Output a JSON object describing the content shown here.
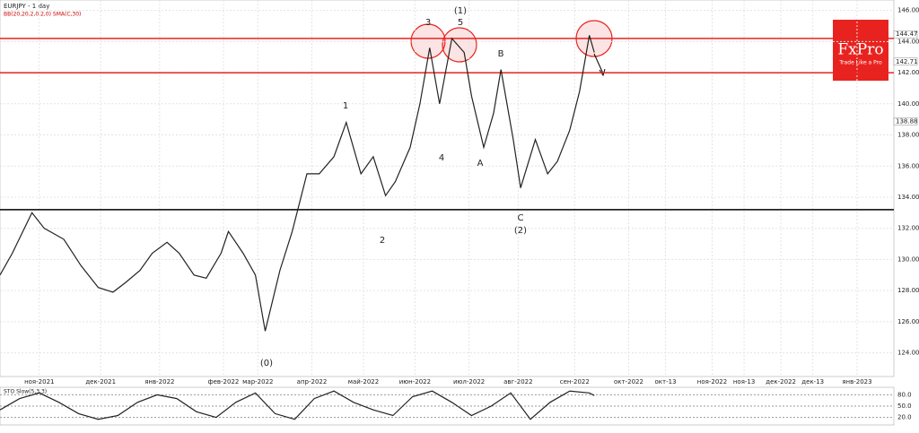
{
  "chart_data": [
    {
      "type": "line",
      "title": "EURJPY - 1 day",
      "subtitle": "BB(20,20,2,0,2,0) SMA(C,30)",
      "brand": "FxPro",
      "tagline": "Trade Like a Pro",
      "x": [
        0,
        5,
        13,
        18,
        26,
        33,
        40,
        46,
        51,
        57,
        62,
        68,
        73,
        79,
        84,
        90,
        93,
        99,
        104,
        108,
        114,
        119,
        125,
        130,
        136,
        141,
        147,
        152,
        157,
        161,
        167,
        171,
        175,
        179,
        184,
        189,
        192,
        197,
        201,
        204,
        209,
        212,
        218,
        223,
        227,
        232,
        236,
        240,
        242
      ],
      "series": [
        {
          "name": "EURJPY",
          "color": "#222222",
          "values": [
            129.0,
            130.4,
            133.0,
            132.0,
            131.3,
            129.6,
            128.2,
            127.9,
            128.5,
            129.3,
            130.4,
            131.1,
            130.4,
            129.0,
            128.8,
            130.4,
            131.8,
            130.4,
            129.0,
            125.4,
            129.3,
            131.8,
            135.5,
            135.5,
            136.6,
            138.8,
            135.5,
            136.6,
            134.1,
            135.0,
            137.2,
            140.0,
            143.6,
            140.0,
            144.2,
            143.3,
            140.5,
            137.2,
            139.4,
            142.2,
            137.7,
            134.6,
            137.7,
            135.5,
            136.3,
            138.3,
            140.8,
            144.4,
            143.3
          ]
        }
      ],
      "levels": [
        {
          "value": 144.2,
          "color": "#e8231f"
        },
        {
          "value": 142.0,
          "color": "#e8231f"
        },
        {
          "value": 133.2,
          "color": "#000000"
        }
      ],
      "price_labels": [
        144.47,
        142.71,
        138.88
      ],
      "annotations": [
        "(0)",
        "1",
        "2",
        "3",
        "4",
        "5",
        "(1)",
        "A",
        "B",
        "C",
        "(2)"
      ],
      "xlim": [
        0,
        364
      ],
      "ylim": [
        122.48,
        146.67
      ],
      "xticks": [
        {
          "value": 16,
          "label": "ноя-2021"
        },
        {
          "value": 41,
          "label": "дек-2021"
        },
        {
          "value": 65,
          "label": "янв-2022"
        },
        {
          "value": 91,
          "label": "фев-2022"
        },
        {
          "value": 105,
          "label": "мар-2022"
        },
        {
          "value": 127,
          "label": "апр-2022"
        },
        {
          "value": 148,
          "label": "май-2022"
        },
        {
          "value": 169,
          "label": "июн-2022"
        },
        {
          "value": 191,
          "label": "июл-2022"
        },
        {
          "value": 211,
          "label": "авг-2022"
        },
        {
          "value": 234,
          "label": "сен-2022"
        },
        {
          "value": 256,
          "label": "окт-2022"
        },
        {
          "value": 271,
          "label": "окт-13"
        },
        {
          "value": 290,
          "label": "ноя-2022"
        },
        {
          "value": 303,
          "label": "ноя-13"
        },
        {
          "value": 318,
          "label": "дек-2022"
        },
        {
          "value": 331,
          "label": "дек-13"
        },
        {
          "value": 349,
          "label": "янв-2023"
        }
      ],
      "yticks": [
        {
          "value": 124,
          "label": "124.00"
        },
        {
          "value": 126,
          "label": "126.00"
        },
        {
          "value": 128,
          "label": "128.00"
        },
        {
          "value": 130,
          "label": "130.00"
        },
        {
          "value": 132,
          "label": "132.00"
        },
        {
          "value": 134,
          "label": "134.00"
        },
        {
          "value": 136,
          "label": "136.00"
        },
        {
          "value": 138,
          "label": "138.00"
        },
        {
          "value": 140,
          "label": "140.00"
        },
        {
          "value": 142,
          "label": "142.00"
        },
        {
          "value": 144,
          "label": "144.00"
        },
        {
          "value": 146,
          "label": "146.00"
        }
      ],
      "grid": true
    },
    {
      "type": "line",
      "title": "STO Slow(5,3,3)",
      "x": [
        0,
        8,
        16,
        24,
        32,
        40,
        48,
        56,
        64,
        72,
        80,
        88,
        96,
        104,
        112,
        120,
        128,
        136,
        144,
        152,
        160,
        168,
        176,
        184,
        192,
        200,
        208,
        216,
        224,
        232,
        240,
        242
      ],
      "series": [
        {
          "name": "STO",
          "color": "#222222",
          "values": [
            40,
            70,
            85,
            60,
            30,
            15,
            25,
            60,
            80,
            70,
            35,
            20,
            60,
            85,
            30,
            15,
            70,
            90,
            60,
            40,
            25,
            75,
            90,
            60,
            25,
            50,
            85,
            15,
            60,
            90,
            85,
            78
          ]
        }
      ],
      "xlim": [
        0,
        364
      ],
      "ylim": [
        0,
        100
      ],
      "yticks": [
        {
          "value": 20,
          "label": "20.0"
        },
        {
          "value": 50,
          "label": "50.0"
        },
        {
          "value": 80,
          "label": "80.0"
        }
      ]
    }
  ]
}
